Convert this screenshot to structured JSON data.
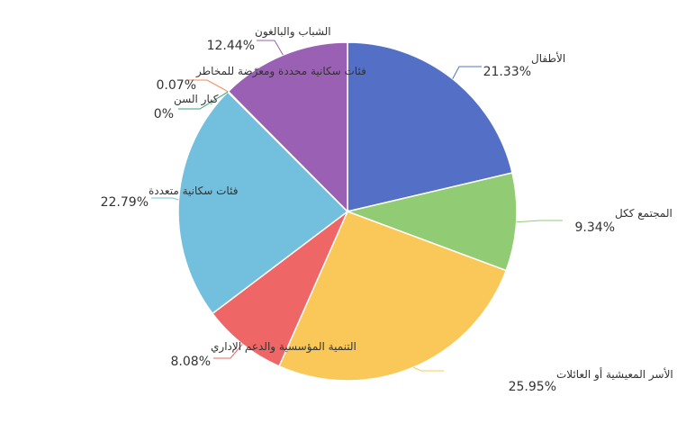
{
  "chart_data": {
    "type": "pie",
    "direction": "clockwise",
    "start_angle": "12 o'clock",
    "slices": [
      {
        "name": "الأطفال",
        "value": 21.33,
        "label": "21.33%",
        "color": "#5470c6"
      },
      {
        "name": "المجتمع ككل",
        "value": 9.34,
        "label": "9.34%",
        "color": "#91cc75"
      },
      {
        "name": "الأسر المعيشية أو العائلات",
        "value": 25.95,
        "label": "25.95%",
        "color": "#fac858"
      },
      {
        "name": "التنمية المؤسسية والدعم الإداري",
        "value": 8.08,
        "label": "8.08%",
        "color": "#ee6666"
      },
      {
        "name": "فئات سكانية متعددة",
        "value": 22.79,
        "label": "22.79%",
        "color": "#73c0de"
      },
      {
        "name": "كبار السن",
        "value": 0,
        "label": "0%",
        "color": "#3ba272"
      },
      {
        "name": "فئات سكانية محددة ومعرّضة للمخاطر",
        "value": 0.07,
        "label": "0.07%",
        "color": "#fc8452"
      },
      {
        "name": "الشباب والبالغون",
        "value": 12.44,
        "label": "12.44%",
        "color": "#9a60b4"
      }
    ]
  }
}
